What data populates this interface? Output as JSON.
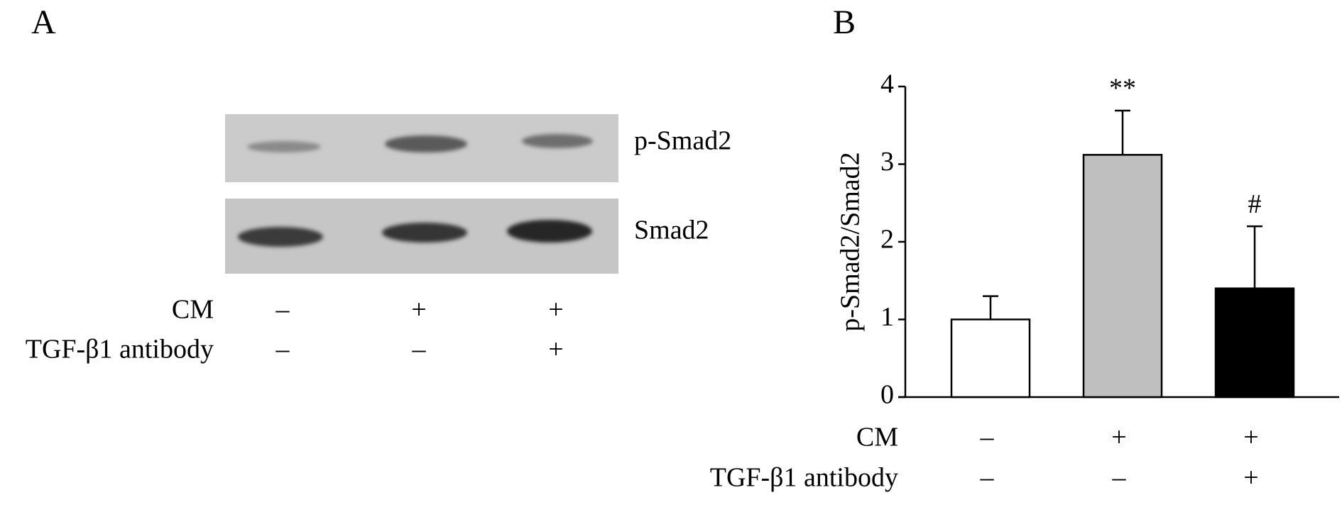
{
  "panel_a": {
    "label": "A",
    "blot_labels": [
      "p-Smad2",
      "Smad2"
    ],
    "conditions": [
      {
        "label": "CM",
        "values": [
          "–",
          "+",
          "+"
        ]
      },
      {
        "label": "TGF-β1 antibody",
        "values": [
          "–",
          "–",
          "+"
        ]
      }
    ]
  },
  "chart_data": {
    "type": "bar",
    "panel_label": "B",
    "y_label": "p-Smad2/Smad2",
    "values": [
      1.0,
      3.12,
      1.4
    ],
    "errors": [
      0.3,
      0.57,
      0.8
    ],
    "colors": [
      "#ffffff",
      "#bfbfbf",
      "#000000"
    ],
    "annotations": [
      null,
      "**",
      "#"
    ],
    "ylim": [
      0,
      4
    ],
    "yticks": [
      0,
      1,
      2,
      3,
      4
    ],
    "conditions": [
      {
        "label": "CM",
        "values": [
          "–",
          "+",
          "+"
        ]
      },
      {
        "label": "TGF-β1 antibody",
        "values": [
          "–",
          "–",
          "+"
        ]
      }
    ]
  }
}
